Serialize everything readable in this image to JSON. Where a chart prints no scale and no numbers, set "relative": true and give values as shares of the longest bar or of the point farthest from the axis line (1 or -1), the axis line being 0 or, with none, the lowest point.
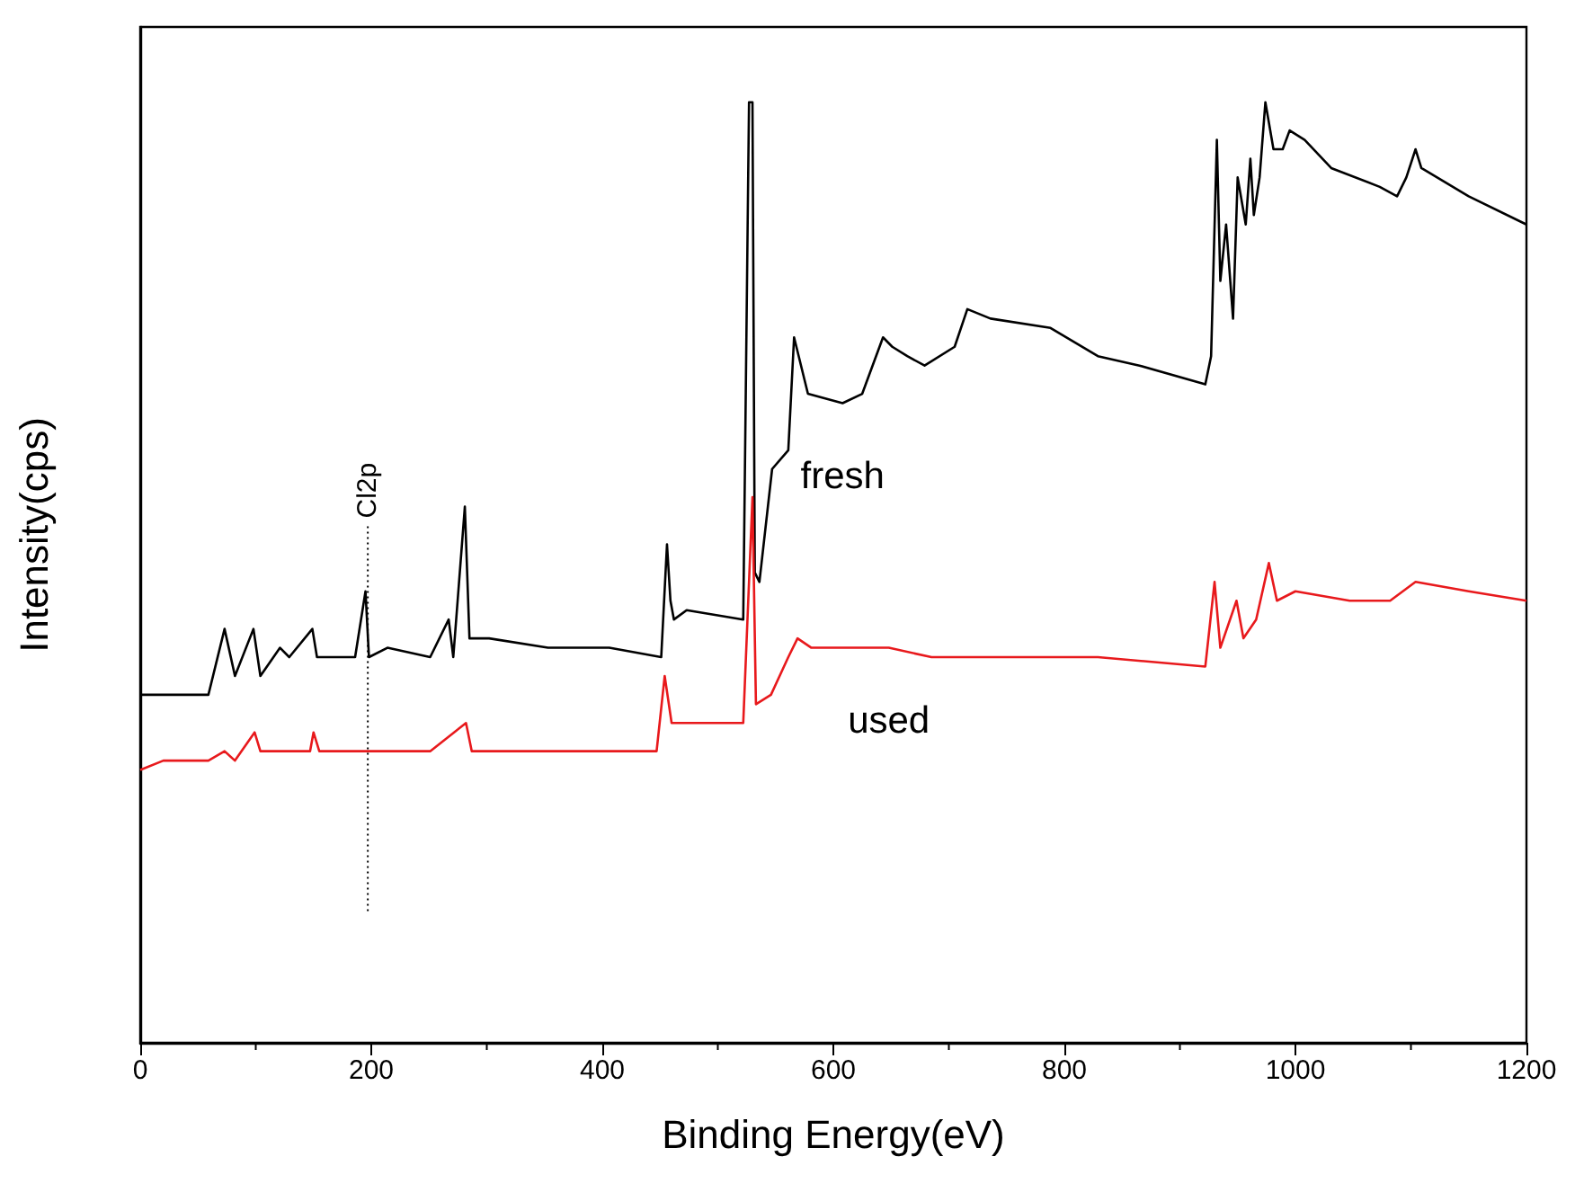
{
  "chart_data": {
    "type": "line",
    "relative": true,
    "xlabel": "Binding Energy(eV)",
    "ylabel": "Intensity(cps)",
    "xlim": [
      0,
      1200
    ],
    "xticks": [
      0,
      200,
      400,
      600,
      800,
      1000,
      1200
    ],
    "grid": false,
    "legend": false,
    "marker": "none",
    "line_style": "solid",
    "ref_lines": [
      {
        "axis": "x",
        "value": 197,
        "label": "Cl2p",
        "line_style": "dotted",
        "color": "#000000"
      }
    ],
    "series": [
      {
        "name": "fresh",
        "color": "#000000",
        "x": [
          0,
          19,
          33,
          59,
          73,
          82,
          98,
          104,
          121,
          129,
          149,
          153,
          186,
          195,
          198,
          214,
          251,
          267,
          271,
          281,
          285,
          302,
          353,
          406,
          451,
          456,
          459,
          462,
          473,
          522,
          527,
          530,
          532,
          536,
          547,
          561,
          566,
          578,
          608,
          625,
          643,
          651,
          664,
          679,
          705,
          716,
          736,
          788,
          829,
          865,
          922,
          927,
          932,
          935,
          940,
          946,
          950,
          957,
          961,
          964,
          969,
          974,
          981,
          989,
          995,
          1008,
          1031,
          1073,
          1088,
          1096,
          1104,
          1109,
          1150,
          1200
        ],
        "values": [
          0.37,
          0.37,
          0.37,
          0.37,
          0.44,
          0.39,
          0.44,
          0.39,
          0.42,
          0.41,
          0.44,
          0.41,
          0.41,
          0.48,
          0.41,
          0.42,
          0.41,
          0.45,
          0.41,
          0.57,
          0.43,
          0.43,
          0.42,
          0.42,
          0.41,
          0.53,
          0.47,
          0.45,
          0.46,
          0.45,
          1,
          1,
          0.5,
          0.49,
          0.61,
          0.63,
          0.75,
          0.69,
          0.68,
          0.69,
          0.75,
          0.74,
          0.73,
          0.72,
          0.74,
          0.78,
          0.77,
          0.76,
          0.73,
          0.72,
          0.7,
          0.73,
          0.96,
          0.81,
          0.87,
          0.77,
          0.92,
          0.87,
          0.94,
          0.88,
          0.92,
          1,
          0.95,
          0.95,
          0.97,
          0.96,
          0.93,
          0.91,
          0.9,
          0.92,
          0.95,
          0.93,
          0.9,
          0.87
        ]
      },
      {
        "name": "used",
        "color": "#e8191c",
        "x": [
          0,
          20,
          34,
          59,
          73,
          82,
          99,
          104,
          121,
          147,
          150,
          155,
          197,
          251,
          282,
          287,
          353,
          447,
          454,
          460,
          473,
          522,
          530,
          533,
          546,
          561,
          569,
          581,
          648,
          685,
          736,
          829,
          922,
          930,
          935,
          949,
          955,
          966,
          977,
          984,
          1000,
          1047,
          1082,
          1104,
          1150,
          1200
        ],
        "values": [
          0.29,
          0.3,
          0.3,
          0.3,
          0.31,
          0.3,
          0.33,
          0.31,
          0.31,
          0.31,
          0.33,
          0.31,
          0.31,
          0.31,
          0.34,
          0.31,
          0.31,
          0.31,
          0.39,
          0.34,
          0.34,
          0.34,
          0.58,
          0.36,
          0.37,
          0.41,
          0.43,
          0.42,
          0.42,
          0.41,
          0.41,
          0.41,
          0.4,
          0.49,
          0.42,
          0.47,
          0.43,
          0.45,
          0.51,
          0.47,
          0.48,
          0.47,
          0.47,
          0.49,
          0.48,
          0.47
        ]
      }
    ]
  }
}
